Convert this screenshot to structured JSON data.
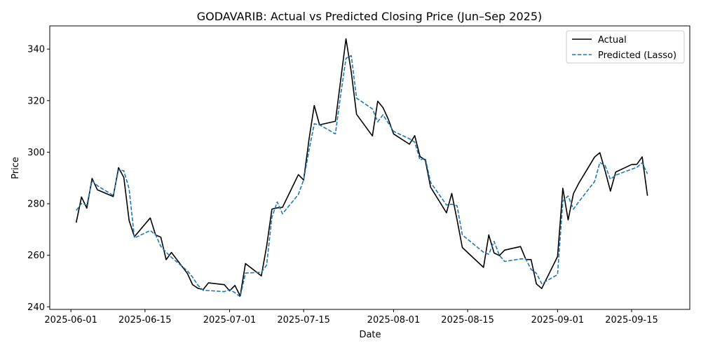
{
  "chart_data": {
    "type": "line",
    "title": "GODAVARIB: Actual vs Predicted Closing Price (Jun–Sep 2025)",
    "xlabel": "Date",
    "ylabel": "Price",
    "x_axis_type": "date",
    "xlim": [
      "2025-05-28",
      "2025-09-26"
    ],
    "ylim": [
      239,
      349
    ],
    "x_ticks": [
      "2025-06-01",
      "2025-06-15",
      "2025-07-01",
      "2025-07-15",
      "2025-08-01",
      "2025-08-15",
      "2025-09-01",
      "2025-09-15"
    ],
    "y_ticks": [
      240,
      260,
      280,
      300,
      320,
      340
    ],
    "grid": false,
    "legend_position": "top-right",
    "x": [
      "2025-06-02",
      "2025-06-03",
      "2025-06-04",
      "2025-06-05",
      "2025-06-06",
      "2025-06-09",
      "2025-06-10",
      "2025-06-11",
      "2025-06-12",
      "2025-06-13",
      "2025-06-16",
      "2025-06-17",
      "2025-06-18",
      "2025-06-19",
      "2025-06-20",
      "2025-06-23",
      "2025-06-24",
      "2025-06-25",
      "2025-06-26",
      "2025-06-27",
      "2025-06-30",
      "2025-07-01",
      "2025-07-02",
      "2025-07-03",
      "2025-07-04",
      "2025-07-07",
      "2025-07-08",
      "2025-07-09",
      "2025-07-10",
      "2025-07-11",
      "2025-07-14",
      "2025-07-15",
      "2025-07-16",
      "2025-07-17",
      "2025-07-18",
      "2025-07-21",
      "2025-07-22",
      "2025-07-23",
      "2025-07-24",
      "2025-07-25",
      "2025-07-28",
      "2025-07-29",
      "2025-07-30",
      "2025-07-31",
      "2025-08-01",
      "2025-08-04",
      "2025-08-05",
      "2025-08-06",
      "2025-08-07",
      "2025-08-08",
      "2025-08-11",
      "2025-08-12",
      "2025-08-13",
      "2025-08-14",
      "2025-08-18",
      "2025-08-19",
      "2025-08-20",
      "2025-08-21",
      "2025-08-22",
      "2025-08-25",
      "2025-08-26",
      "2025-08-27",
      "2025-08-28",
      "2025-08-29",
      "2025-09-01",
      "2025-09-02",
      "2025-09-03",
      "2025-09-04",
      "2025-09-05",
      "2025-09-08",
      "2025-09-09",
      "2025-09-10",
      "2025-09-11",
      "2025-09-12",
      "2025-09-15",
      "2025-09-16",
      "2025-09-17",
      "2025-09-18"
    ],
    "series": [
      {
        "name": "Actual",
        "color": "#000000",
        "dash": "solid",
        "values": [
          272.7,
          282.6,
          278.3,
          289.8,
          285.4,
          282.8,
          294.0,
          290.2,
          273.5,
          267.2,
          274.5,
          267.9,
          267.0,
          258.3,
          261.1,
          253.0,
          248.6,
          247.2,
          246.7,
          249.3,
          248.6,
          246.2,
          248.3,
          244.2,
          256.8,
          252.0,
          263.5,
          277.9,
          278.4,
          278.6,
          291.3,
          289.2,
          304.8,
          318.1,
          310.6,
          312.0,
          328.0,
          344.0,
          331.1,
          314.7,
          306.3,
          319.8,
          317.3,
          312.8,
          307.1,
          303.1,
          306.4,
          298.3,
          296.9,
          286.4,
          276.5,
          284.0,
          273.8,
          263.0,
          255.3,
          267.9,
          260.9,
          259.9,
          262.0,
          263.4,
          258.4,
          258.3,
          248.9,
          247.1,
          259.5,
          286.0,
          273.7,
          283.9,
          287.9,
          298.1,
          299.8,
          292.7,
          284.9,
          292.3,
          295.2,
          295.3,
          298.2,
          283.1
        ]
      },
      {
        "name": "Predicted (Lasso)",
        "color": "#1f77b4",
        "dash": "dashed",
        "values": [
          277.4,
          280.1,
          279.5,
          288.9,
          287.0,
          283.2,
          293.1,
          292.8,
          285.8,
          266.7,
          269.6,
          268.0,
          263.4,
          261.2,
          259.2,
          254.0,
          251.5,
          248.4,
          246.4,
          246.3,
          245.9,
          246.7,
          245.5,
          243.9,
          253.1,
          253.4,
          256.2,
          274.8,
          280.7,
          276.1,
          283.6,
          289.3,
          300.6,
          311.0,
          310.6,
          307.1,
          322.3,
          336.4,
          337.5,
          321.0,
          316.8,
          311.8,
          314.5,
          311.3,
          308.1,
          305.2,
          303.9,
          297.0,
          297.7,
          288.3,
          279.5,
          279.8,
          279.2,
          267.9,
          261.2,
          260.4,
          265.4,
          260.0,
          257.6,
          258.6,
          258.6,
          254.5,
          253.0,
          249.0,
          252.5,
          281.1,
          283.0,
          277.9,
          280.7,
          288.6,
          296.0,
          294.8,
          289.5,
          291.1,
          293.4,
          294.1,
          295.9,
          291.6
        ]
      }
    ]
  }
}
